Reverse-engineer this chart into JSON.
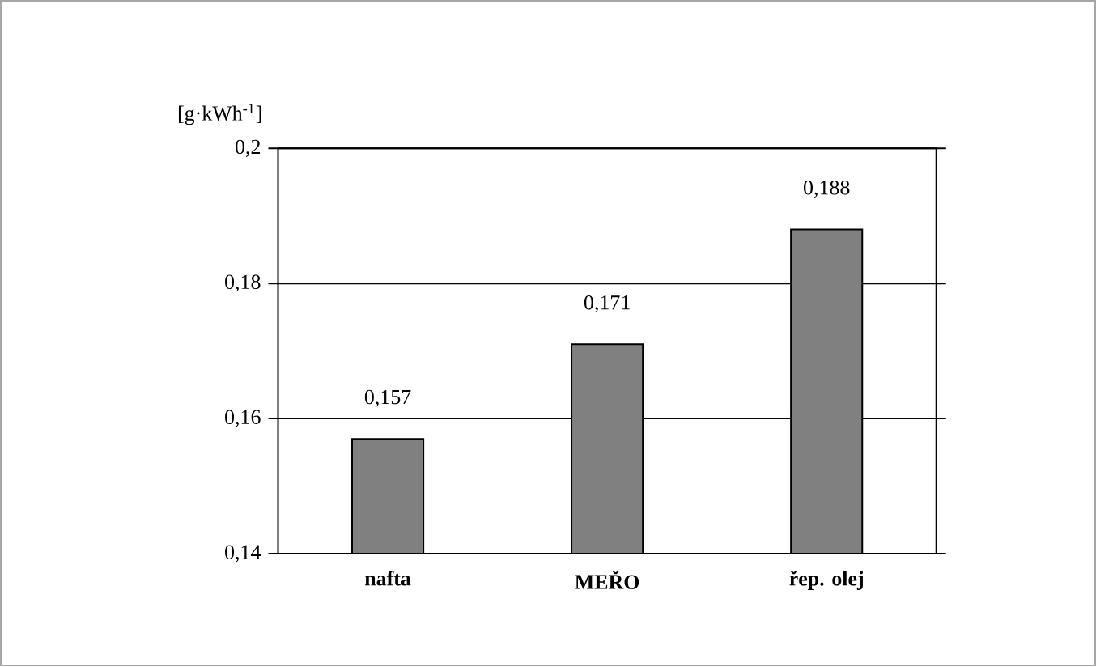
{
  "chart_data": {
    "type": "bar",
    "ylabel": "[g·kWh$^{-1}$]",
    "categories": [
      "nafta",
      "MEŘO",
      "řep. olej"
    ],
    "values": [
      0.157,
      0.171,
      0.188
    ],
    "value_labels": [
      "0,157",
      "0,171",
      "0,188"
    ],
    "color": "#808080",
    "ylim": [
      0.14,
      0.2
    ],
    "yticks": [
      {
        "value": 0.14,
        "label": "0,14"
      },
      {
        "value": 0.16,
        "label": "0,16"
      },
      {
        "value": 0.18,
        "label": "0,18"
      },
      {
        "value": 0.2,
        "label": "0,2"
      }
    ],
    "grid": "y"
  }
}
